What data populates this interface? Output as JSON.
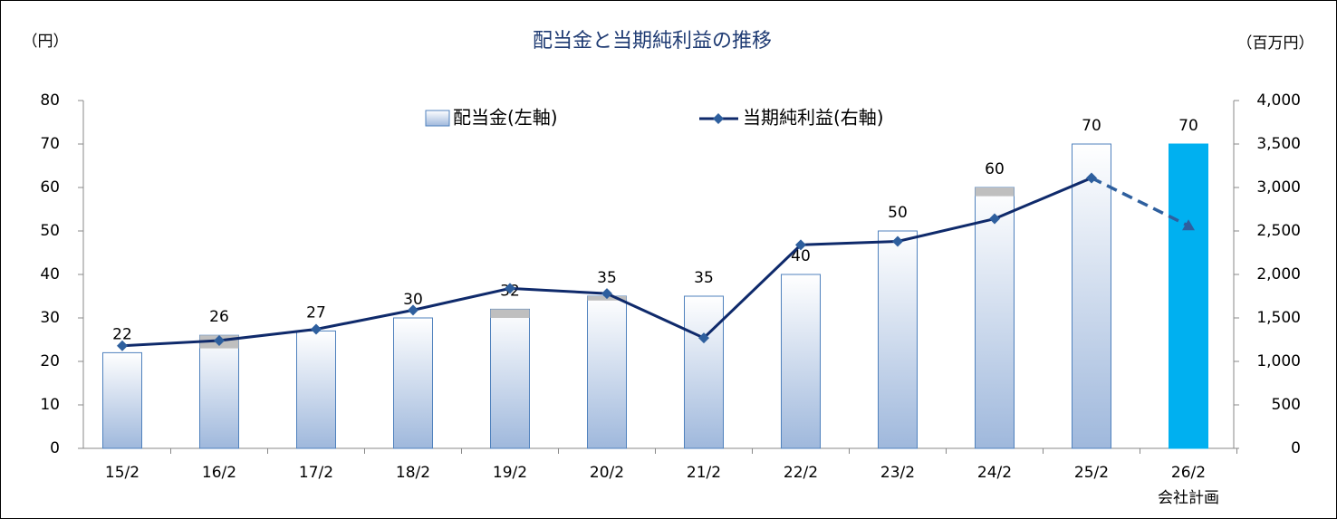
{
  "chart_data": {
    "type": "bar_line",
    "title": "配当金と当期純利益の推移",
    "y_label": "（円）",
    "y2_label": "（百万円）",
    "categories": [
      "15/2",
      "16/2",
      "17/2",
      "18/2",
      "19/2",
      "20/2",
      "21/2",
      "22/2",
      "23/2",
      "24/2",
      "25/2",
      "26/2"
    ],
    "forecast_label": "会社計画",
    "series": [
      {
        "name": "配当金(左軸)",
        "type": "bar",
        "color": "#9fb8dc",
        "edge_color": "#4f81bd",
        "forecast_color": "#00b0f0",
        "values": [
          22,
          26,
          27,
          30,
          32,
          35,
          35,
          40,
          50,
          60,
          70,
          70
        ],
        "special": [
          0,
          3,
          0,
          0,
          2,
          1,
          0,
          0,
          0,
          2,
          0,
          0
        ],
        "special_color": "#bfbfbf"
      },
      {
        "name": "当期純利益(右軸)",
        "type": "line",
        "axis": "y2",
        "color": "#0f2a6b",
        "marker_color": "#2e5f9e",
        "forecast_style": "dashed",
        "values": [
          1180,
          1240,
          1370,
          1590,
          1840,
          1780,
          1270,
          2340,
          2380,
          2640,
          3110,
          2560
        ]
      }
    ],
    "ylim": [
      0,
      80
    ],
    "yticks": [
      0,
      10,
      20,
      30,
      40,
      50,
      60,
      70,
      80
    ],
    "y2lim": [
      0,
      4000
    ],
    "y2ticks": [
      0,
      500,
      {
        "value": 1000,
        "label": "1,000"
      },
      {
        "value": 1500,
        "label": "1,500"
      },
      {
        "value": 2000,
        "label": "2,000"
      },
      {
        "value": 2500,
        "label": "2,500"
      },
      {
        "value": 3000,
        "label": "3,000"
      },
      {
        "value": 3500,
        "label": "3,500"
      },
      {
        "value": 4000,
        "label": "4,000"
      }
    ]
  }
}
